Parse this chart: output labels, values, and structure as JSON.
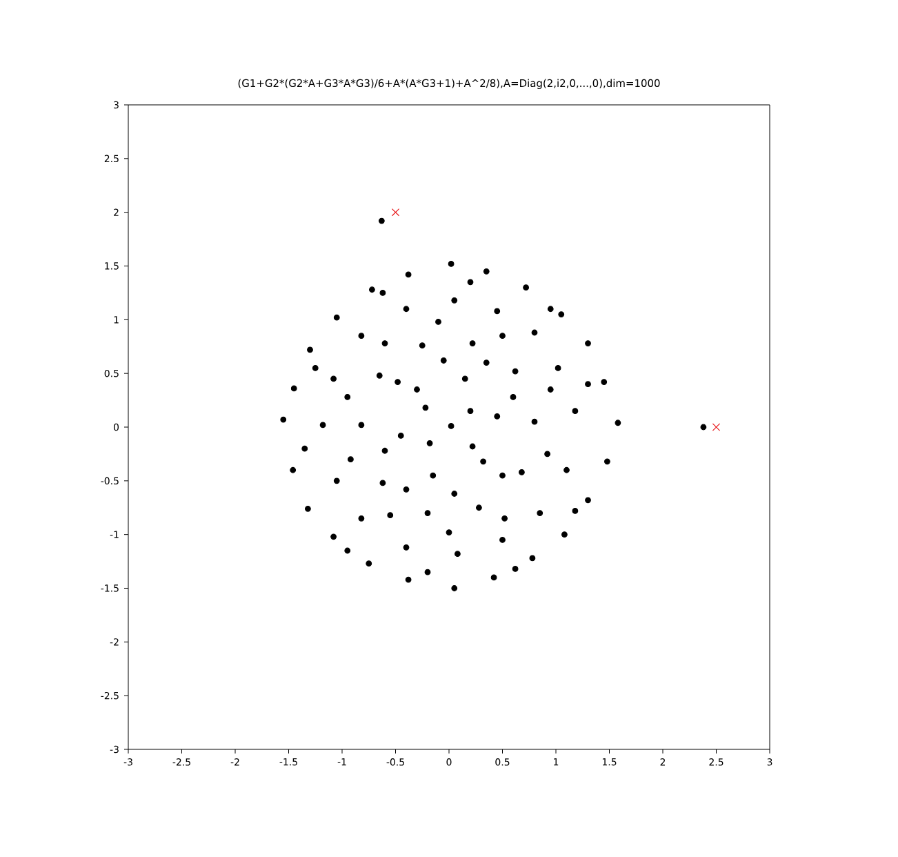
{
  "chart_data": {
    "type": "scatter",
    "title": "(G1+G2*(G2*A+G3*A*G3)/6+A*(A*G3+1)+A^2/8),A=Diag(2,i2,0,...,0),dim=1000",
    "xlim": [
      -3,
      3
    ],
    "ylim": [
      -3,
      3
    ],
    "xticks": [
      -3,
      -2.5,
      -2,
      -1.5,
      -1,
      -0.5,
      0,
      0.5,
      1,
      1.5,
      2,
      2.5,
      3
    ],
    "yticks": [
      -3,
      -2.5,
      -2,
      -1.5,
      -1,
      -0.5,
      0,
      0.5,
      1,
      1.5,
      2,
      2.5,
      3
    ],
    "series": [
      {
        "color": "#000000",
        "marker": "circle",
        "x": [
          1.58,
          1.45,
          1.3,
          1.05,
          0.72,
          0.35,
          0.02,
          -0.38,
          -0.72,
          -1.05,
          -1.3,
          -1.45,
          -1.55,
          -1.46,
          -1.32,
          -1.08,
          -0.75,
          -0.38,
          0.05,
          0.42,
          0.78,
          1.08,
          1.3,
          1.48,
          1.18,
          1.02,
          0.8,
          0.45,
          0.05,
          -0.4,
          -0.82,
          -1.08,
          -1.18,
          -1.05,
          -0.82,
          -0.4,
          0.08,
          0.5,
          0.85,
          1.1,
          0.8,
          0.62,
          0.22,
          -0.25,
          -0.65,
          -0.82,
          -0.62,
          -0.2,
          0.28,
          0.68,
          0.45,
          0.15,
          -0.3,
          -0.45,
          -0.15,
          0.32,
          0.02,
          1.3,
          1.18,
          0.62,
          -0.2,
          -0.95,
          -1.35,
          -1.25,
          -0.62,
          0.2,
          0.95,
          0.95,
          0.5,
          -0.1,
          -0.6,
          -0.95,
          -0.92,
          -0.55,
          0.0,
          0.52,
          0.92,
          0.6,
          0.35,
          -0.05,
          -0.48,
          -0.6,
          -0.4,
          0.05,
          0.5,
          0.2,
          -0.18,
          0.22,
          -0.22,
          -0.63,
          2.38
        ],
        "values": [
          0.04,
          0.42,
          0.78,
          1.05,
          1.3,
          1.45,
          1.52,
          1.42,
          1.28,
          1.02,
          0.72,
          0.36,
          0.07,
          -0.4,
          -0.76,
          -1.02,
          -1.27,
          -1.42,
          -1.5,
          -1.4,
          -1.22,
          -1.0,
          -0.68,
          -0.32,
          0.15,
          0.55,
          0.88,
          1.08,
          1.18,
          1.1,
          0.85,
          0.45,
          0.02,
          -0.5,
          -0.85,
          -1.12,
          -1.18,
          -1.05,
          -0.8,
          -0.4,
          0.05,
          0.52,
          0.78,
          0.76,
          0.48,
          0.02,
          -0.52,
          -0.8,
          -0.75,
          -0.42,
          0.1,
          0.45,
          0.35,
          -0.08,
          -0.45,
          -0.32,
          0.01,
          0.4,
          -0.78,
          -1.32,
          -1.35,
          -1.15,
          -0.2,
          0.55,
          1.25,
          1.35,
          1.1,
          0.35,
          0.85,
          0.98,
          0.78,
          0.28,
          -0.3,
          -0.82,
          -0.98,
          -0.85,
          -0.25,
          0.28,
          0.6,
          0.62,
          0.42,
          -0.22,
          -0.58,
          -0.62,
          -0.45,
          0.15,
          -0.15,
          -0.18,
          0.18,
          1.92,
          0.0
        ]
      },
      {
        "color": "#e8191c",
        "marker": "cross",
        "x": [
          -0.5,
          2.5
        ],
        "values": [
          2,
          0
        ]
      }
    ]
  }
}
